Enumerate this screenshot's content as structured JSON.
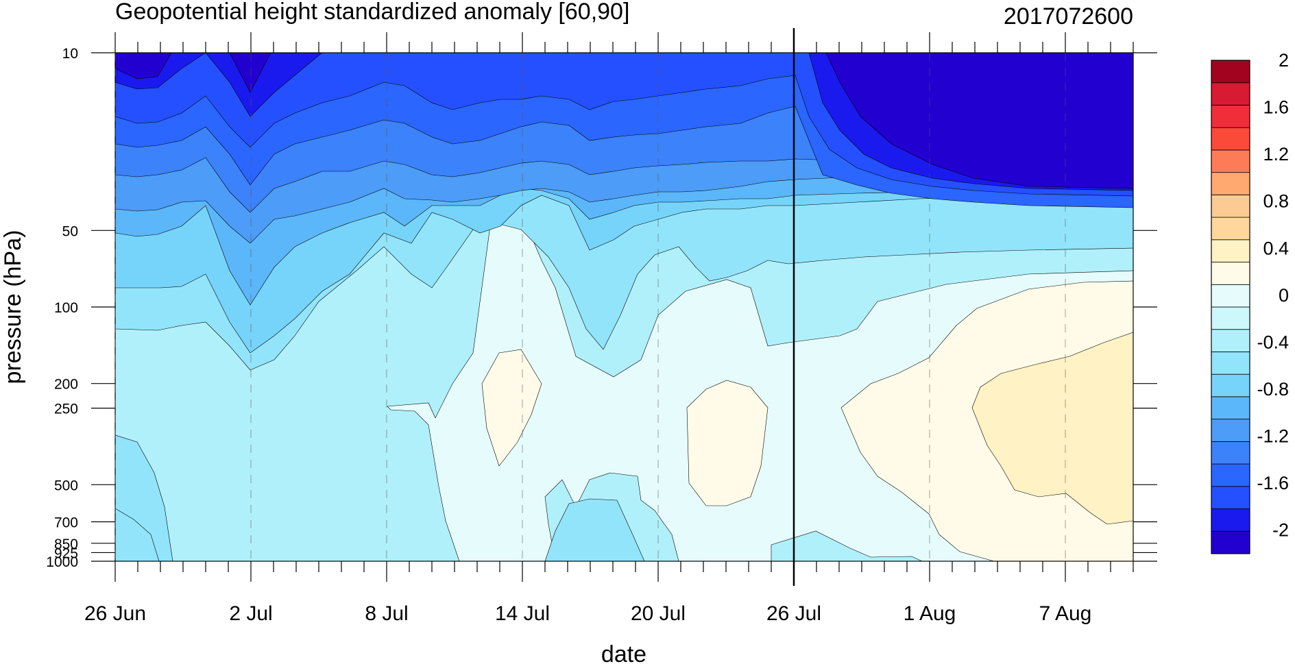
{
  "chart_data": {
    "type": "heatmap",
    "subtype": "filled-contour",
    "title": "Geopotential height standardized anomaly [60,90]",
    "title_right": "2017072600",
    "xlabel": "date",
    "ylabel": "pressure (hPa)",
    "x_ticks": [
      "26 Jun",
      "2 Jul",
      "8 Jul",
      "14 Jul",
      "20 Jul",
      "26 Jul",
      "1 Aug",
      "7 Aug"
    ],
    "x_range": [
      "26 Jun",
      "10 Aug"
    ],
    "y_ticks": [
      "10",
      "50",
      "100",
      "200",
      "250",
      "500",
      "700",
      "850",
      "925",
      "1000"
    ],
    "y_scale": "log",
    "y_reversed": true,
    "y_range": [
      1000,
      10
    ],
    "analysis_date": "26 Jul",
    "colorbar": {
      "levels": [
        -2.2,
        -2.0,
        -1.8,
        -1.6,
        -1.4,
        -1.2,
        -1.0,
        -0.8,
        -0.6,
        -0.4,
        -0.2,
        0.0,
        0.2,
        0.4,
        0.6,
        0.8,
        1.0,
        1.2,
        1.4,
        1.6,
        1.8,
        2.0
      ],
      "labels": [
        "2",
        "1.6",
        "1.2",
        "0.8",
        "0.4",
        "0",
        "-0.4",
        "-0.8",
        "-1.2",
        "-1.6",
        "-2"
      ],
      "colors": [
        "#2200d0",
        "#1a1aee",
        "#2550ff",
        "#2a66ff",
        "#3c82fa",
        "#4c9cf8",
        "#5cb6fa",
        "#76d4fb",
        "#92e4fb",
        "#b0f0fb",
        "#ccf7fb",
        "#e6fcfc",
        "#fffbe8",
        "#fff2c4",
        "#ffd79c",
        "#fccb94",
        "#ffa870",
        "#fd7c57",
        "#fb4a3a",
        "#ef2e3a",
        "#d81a33",
        "#a2041f"
      ]
    },
    "grid": "dashed vertical at major date ticks",
    "legend": "colorbar-right"
  }
}
